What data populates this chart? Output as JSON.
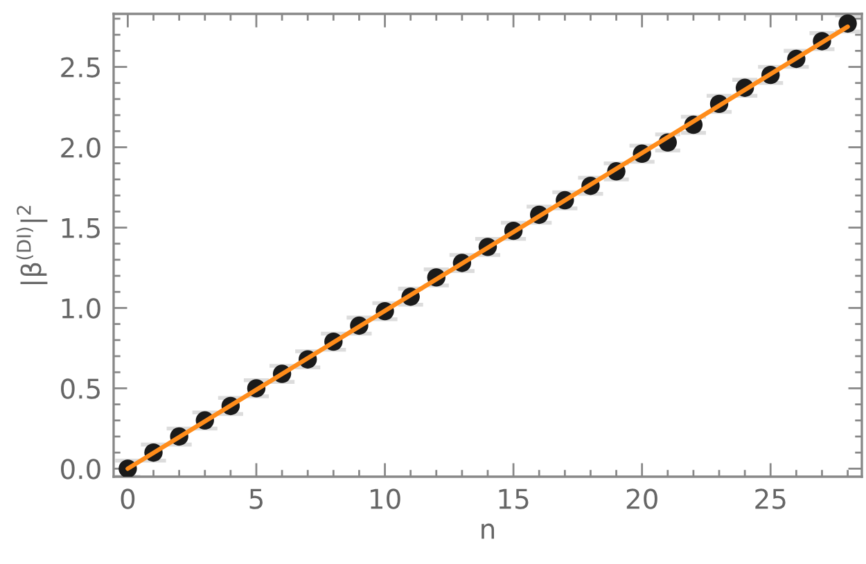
{
  "chart_data": {
    "type": "scatter",
    "xlabel": "n",
    "ylabel": "|β$^{(DI)}$|$^{2}$",
    "xlim": [
      -0.55,
      28.55
    ],
    "ylim": [
      -0.05,
      2.83
    ],
    "xticks": [
      0,
      {
        "value": 1,
        "label": null
      },
      {
        "value": 2,
        "label": null
      },
      {
        "value": 3,
        "label": null
      },
      {
        "value": 4,
        "label": null
      },
      5,
      {
        "value": 6,
        "label": null
      },
      {
        "value": 7,
        "label": null
      },
      {
        "value": 8,
        "label": null
      },
      {
        "value": 9,
        "label": null
      },
      10,
      {
        "value": 11,
        "label": null
      },
      {
        "value": 12,
        "label": null
      },
      {
        "value": 13,
        "label": null
      },
      {
        "value": 14,
        "label": null
      },
      15,
      {
        "value": 16,
        "label": null
      },
      {
        "value": 17,
        "label": null
      },
      {
        "value": 18,
        "label": null
      },
      {
        "value": 19,
        "label": null
      },
      20,
      {
        "value": 21,
        "label": null
      },
      {
        "value": 22,
        "label": null
      },
      {
        "value": 23,
        "label": null
      },
      {
        "value": 24,
        "label": null
      },
      25,
      {
        "value": 26,
        "label": null
      },
      {
        "value": 27,
        "label": null
      },
      {
        "value": 28,
        "label": null
      }
    ],
    "yticks": [
      {
        "value": 0,
        "label": "0.0"
      },
      {
        "value": 0.1,
        "label": null
      },
      {
        "value": 0.2,
        "label": null
      },
      {
        "value": 0.3,
        "label": null
      },
      {
        "value": 0.4,
        "label": null
      },
      {
        "value": 0.5,
        "label": "0.5"
      },
      {
        "value": 0.6,
        "label": null
      },
      {
        "value": 0.7,
        "label": null
      },
      {
        "value": 0.8,
        "label": null
      },
      {
        "value": 0.9,
        "label": null
      },
      {
        "value": 1,
        "label": "1.0"
      },
      {
        "value": 1.1,
        "label": null
      },
      {
        "value": 1.2,
        "label": null
      },
      {
        "value": 1.3,
        "label": null
      },
      {
        "value": 1.4,
        "label": null
      },
      {
        "value": 1.5,
        "label": "1.5"
      },
      {
        "value": 1.6,
        "label": null
      },
      {
        "value": 1.7,
        "label": null
      },
      {
        "value": 1.8,
        "label": null
      },
      {
        "value": 1.9,
        "label": null
      },
      {
        "value": 2,
        "label": "2.0"
      },
      {
        "value": 2.1,
        "label": null
      },
      {
        "value": 2.2,
        "label": null
      },
      {
        "value": 2.3,
        "label": null
      },
      {
        "value": 2.4,
        "label": null
      },
      {
        "value": 2.5,
        "label": "2.5"
      },
      {
        "value": 2.6,
        "label": null
      },
      {
        "value": 2.7,
        "label": null
      },
      {
        "value": 2.8,
        "label": null
      }
    ],
    "series": [
      {
        "color": "#1a1a1a",
        "marker": "circle",
        "x": [
          0,
          1,
          2,
          3,
          4,
          5,
          6,
          7,
          8,
          9,
          10,
          11,
          12,
          13,
          14,
          15,
          16,
          17,
          18,
          19,
          20,
          21,
          22,
          23,
          24,
          25,
          26,
          27,
          28
        ],
        "values": [
          0,
          0.1,
          0.2,
          0.3,
          0.39,
          0.5,
          0.59,
          0.68,
          0.79,
          0.89,
          0.98,
          1.07,
          1.19,
          1.28,
          1.38,
          1.48,
          1.58,
          1.67,
          1.76,
          1.85,
          1.96,
          2.03,
          2.14,
          2.27,
          2.37,
          2.45,
          2.55,
          2.66,
          2.77
        ],
        "errors": [
          0.05,
          0.05,
          0.05,
          0.05,
          0.05,
          0.05,
          0.05,
          0.05,
          0.05,
          0.05,
          0.05,
          0.05,
          0.05,
          0.05,
          0.05,
          0.05,
          0.05,
          0.05,
          0.05,
          0.05,
          0.05,
          0.05,
          0.05,
          0.05,
          0.05,
          0.05,
          0.05,
          0.05,
          0.05
        ]
      },
      {
        "type": "line",
        "color": "#ff8c1a",
        "line_style": "solid",
        "x": [
          0,
          28
        ],
        "values": [
          0,
          2.75
        ]
      }
    ]
  }
}
